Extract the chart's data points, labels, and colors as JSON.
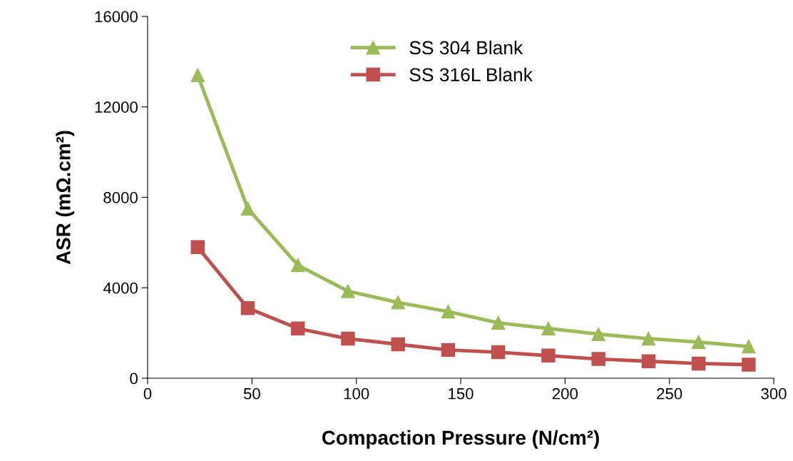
{
  "chart_data": {
    "type": "line",
    "xlabel": "Compaction Pressure (N/cm²)",
    "ylabel": "ASR (mΩ.cm²)",
    "x": [
      24,
      48,
      72,
      96,
      120,
      144,
      168,
      192,
      216,
      240,
      264,
      288
    ],
    "series": [
      {
        "name": "SS 304 Blank",
        "color": "#9bbb59",
        "marker": "triangle",
        "values": [
          13400,
          7500,
          5000,
          3850,
          3350,
          2950,
          2450,
          2200,
          1950,
          1750,
          1600,
          1400
        ]
      },
      {
        "name": "SS 316L Blank",
        "color": "#c0504d",
        "marker": "square",
        "values": [
          5800,
          3100,
          2200,
          1750,
          1500,
          1250,
          1150,
          1000,
          850,
          750,
          650,
          600
        ]
      }
    ],
    "xlim": [
      0,
      300
    ],
    "xticks": [
      0,
      50,
      100,
      150,
      200,
      250,
      300
    ],
    "ylim": [
      0,
      16000
    ],
    "yticks": [
      0,
      4000,
      8000,
      12000,
      16000
    ],
    "grid": false,
    "legend": "top"
  }
}
